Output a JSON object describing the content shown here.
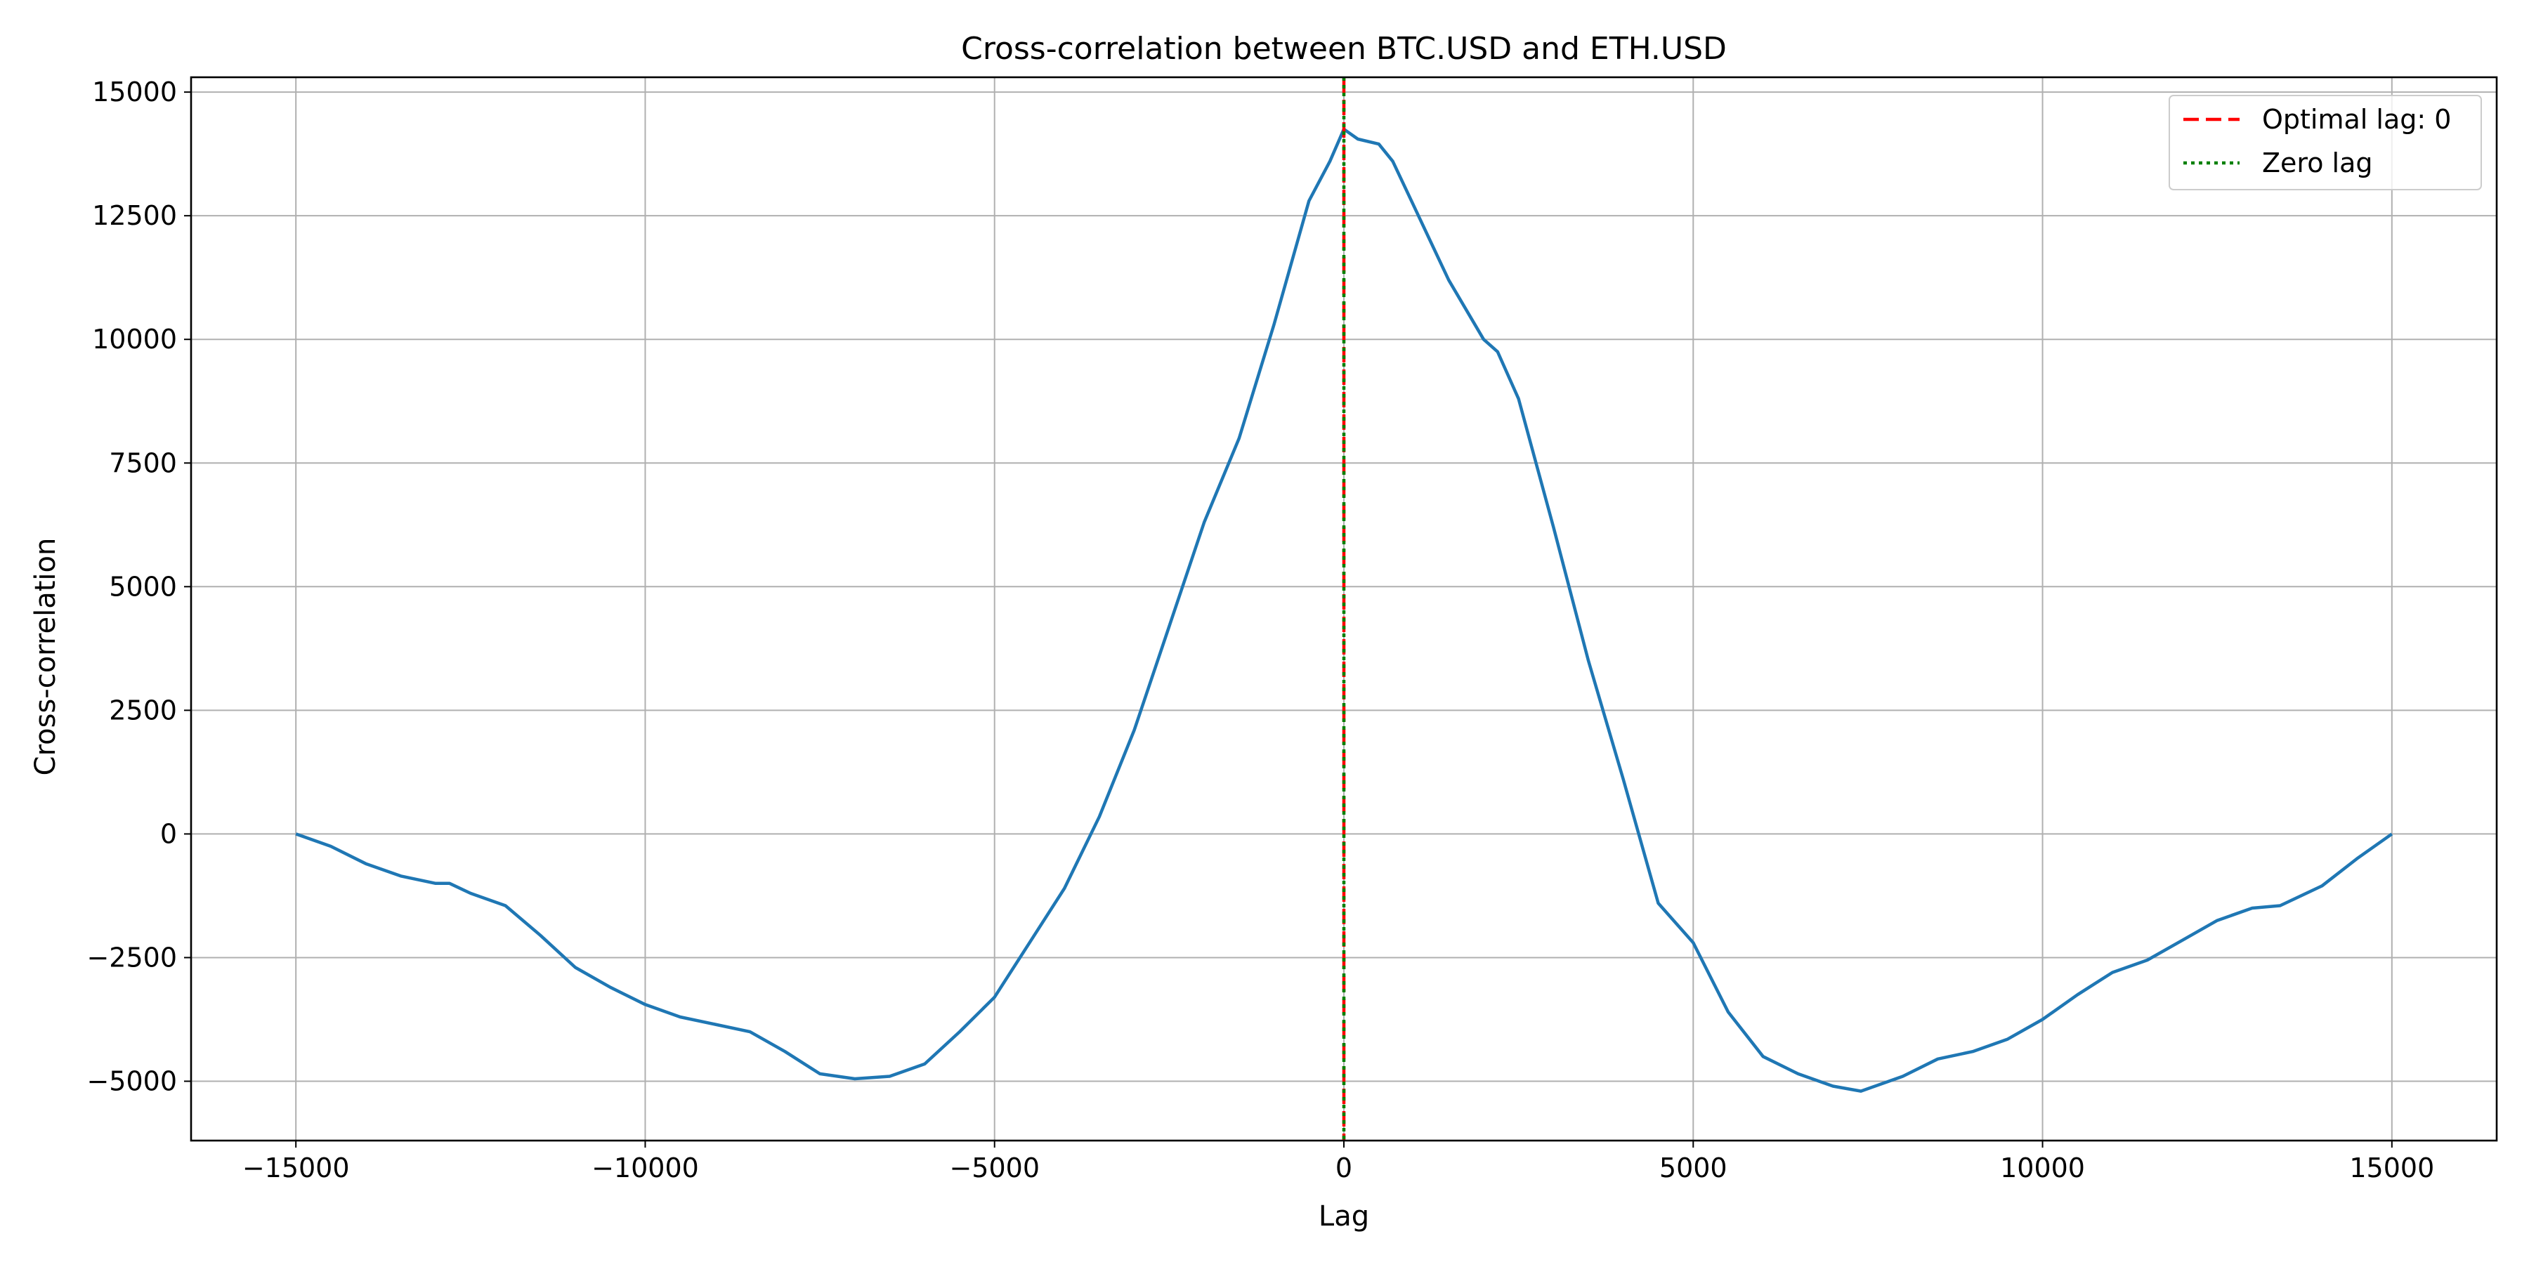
{
  "chart_data": {
    "type": "line",
    "title": "Cross-correlation between BTC.USD and ETH.USD",
    "xlabel": "Lag",
    "ylabel": "Cross-correlation",
    "xlim": [
      -16500,
      16500
    ],
    "ylim": [
      -6200,
      15300
    ],
    "xticks": [
      -15000,
      -10000,
      -5000,
      0,
      5000,
      10000,
      15000
    ],
    "xtick_labels": [
      "−15000",
      "−10000",
      "−5000",
      "0",
      "5000",
      "10000",
      "15000"
    ],
    "yticks": [
      -5000,
      -2500,
      0,
      2500,
      5000,
      7500,
      10000,
      12500,
      15000
    ],
    "ytick_labels": [
      "−5000",
      "−2500",
      "0",
      "2500",
      "5000",
      "7500",
      "10000",
      "12500",
      "15000"
    ],
    "grid": true,
    "legend_position": "top-right",
    "series": [
      {
        "color": "#1f77b4",
        "x": [
          -15000,
          -14500,
          -14000,
          -13500,
          -13000,
          -12800,
          -12500,
          -12000,
          -11500,
          -11000,
          -10500,
          -10000,
          -9500,
          -9000,
          -8500,
          -8000,
          -7500,
          -7000,
          -6500,
          -6000,
          -5500,
          -5000,
          -4500,
          -4000,
          -3500,
          -3000,
          -2500,
          -2000,
          -1500,
          -1000,
          -500,
          -200,
          0,
          200,
          500,
          700,
          1000,
          1500,
          2000,
          2200,
          2500,
          3000,
          3500,
          4000,
          4500,
          5000,
          5500,
          6000,
          6500,
          7000,
          7400,
          8000,
          8500,
          9000,
          9500,
          10000,
          10500,
          11000,
          11500,
          12000,
          12500,
          13000,
          13400,
          14000,
          14500,
          15000
        ],
        "y": [
          0,
          -250,
          -600,
          -850,
          -1000,
          -1000,
          -1200,
          -1450,
          -2050,
          -2700,
          -3100,
          -3450,
          -3700,
          -3850,
          -4000,
          -4400,
          -4850,
          -4950,
          -4900,
          -4650,
          -4000,
          -3300,
          -2200,
          -1100,
          350,
          2100,
          4200,
          6300,
          8000,
          10300,
          12800,
          13600,
          14250,
          14050,
          13950,
          13600,
          12700,
          11200,
          10000,
          9750,
          8800,
          6200,
          3500,
          1100,
          -1400,
          -2200,
          -3600,
          -4500,
          -4850,
          -5100,
          -5200,
          -4900,
          -4550,
          -4400,
          -4150,
          -3750,
          -3250,
          -2800,
          -2550,
          -2150,
          -1750,
          -1500,
          -1450,
          -1050,
          -500,
          0
        ]
      }
    ],
    "vlines": [
      {
        "label": "Optimal lag: 0",
        "x": 0,
        "color": "#ff0000",
        "style": "dashed"
      },
      {
        "label": "Zero lag",
        "x": 0,
        "color": "#008000",
        "style": "dotted"
      }
    ]
  }
}
